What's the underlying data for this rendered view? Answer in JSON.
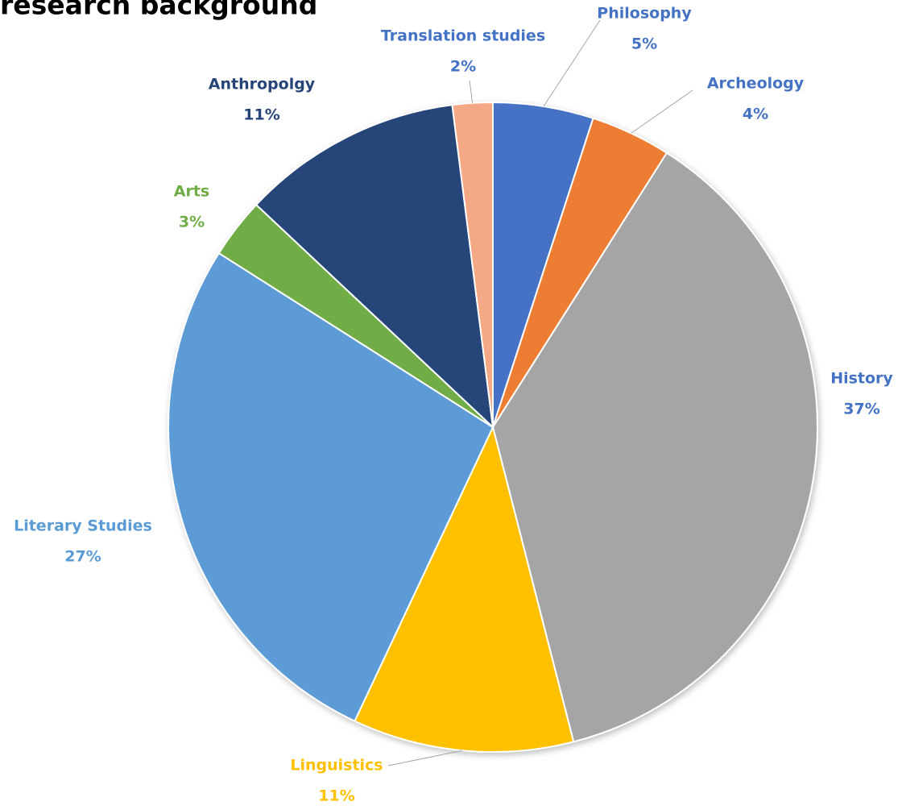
{
  "chart_data": {
    "type": "pie",
    "title": "research background",
    "categories": [
      "Philosophy",
      "Archeology",
      "History",
      "Linguistics",
      "Literary Studies",
      "Arts",
      "Anthropolgy",
      "Translation studies"
    ],
    "values": [
      5,
      4,
      37,
      11,
      27,
      3,
      11,
      2
    ],
    "value_labels": [
      "5%",
      "4%",
      "37%",
      "11%",
      "27%",
      "3%",
      "11%",
      "2%"
    ],
    "colors": [
      "#4472c4",
      "#ed7d31",
      "#a5a5a5",
      "#ffc000",
      "#5b9bd5",
      "#70ad47",
      "#264478",
      "#f4a886"
    ],
    "label_colors": [
      "#4472c4",
      "#4472c4",
      "#4472c4",
      "#ffc000",
      "#5b9bd5",
      "#70ad47",
      "#264478",
      "#4472c4"
    ]
  }
}
